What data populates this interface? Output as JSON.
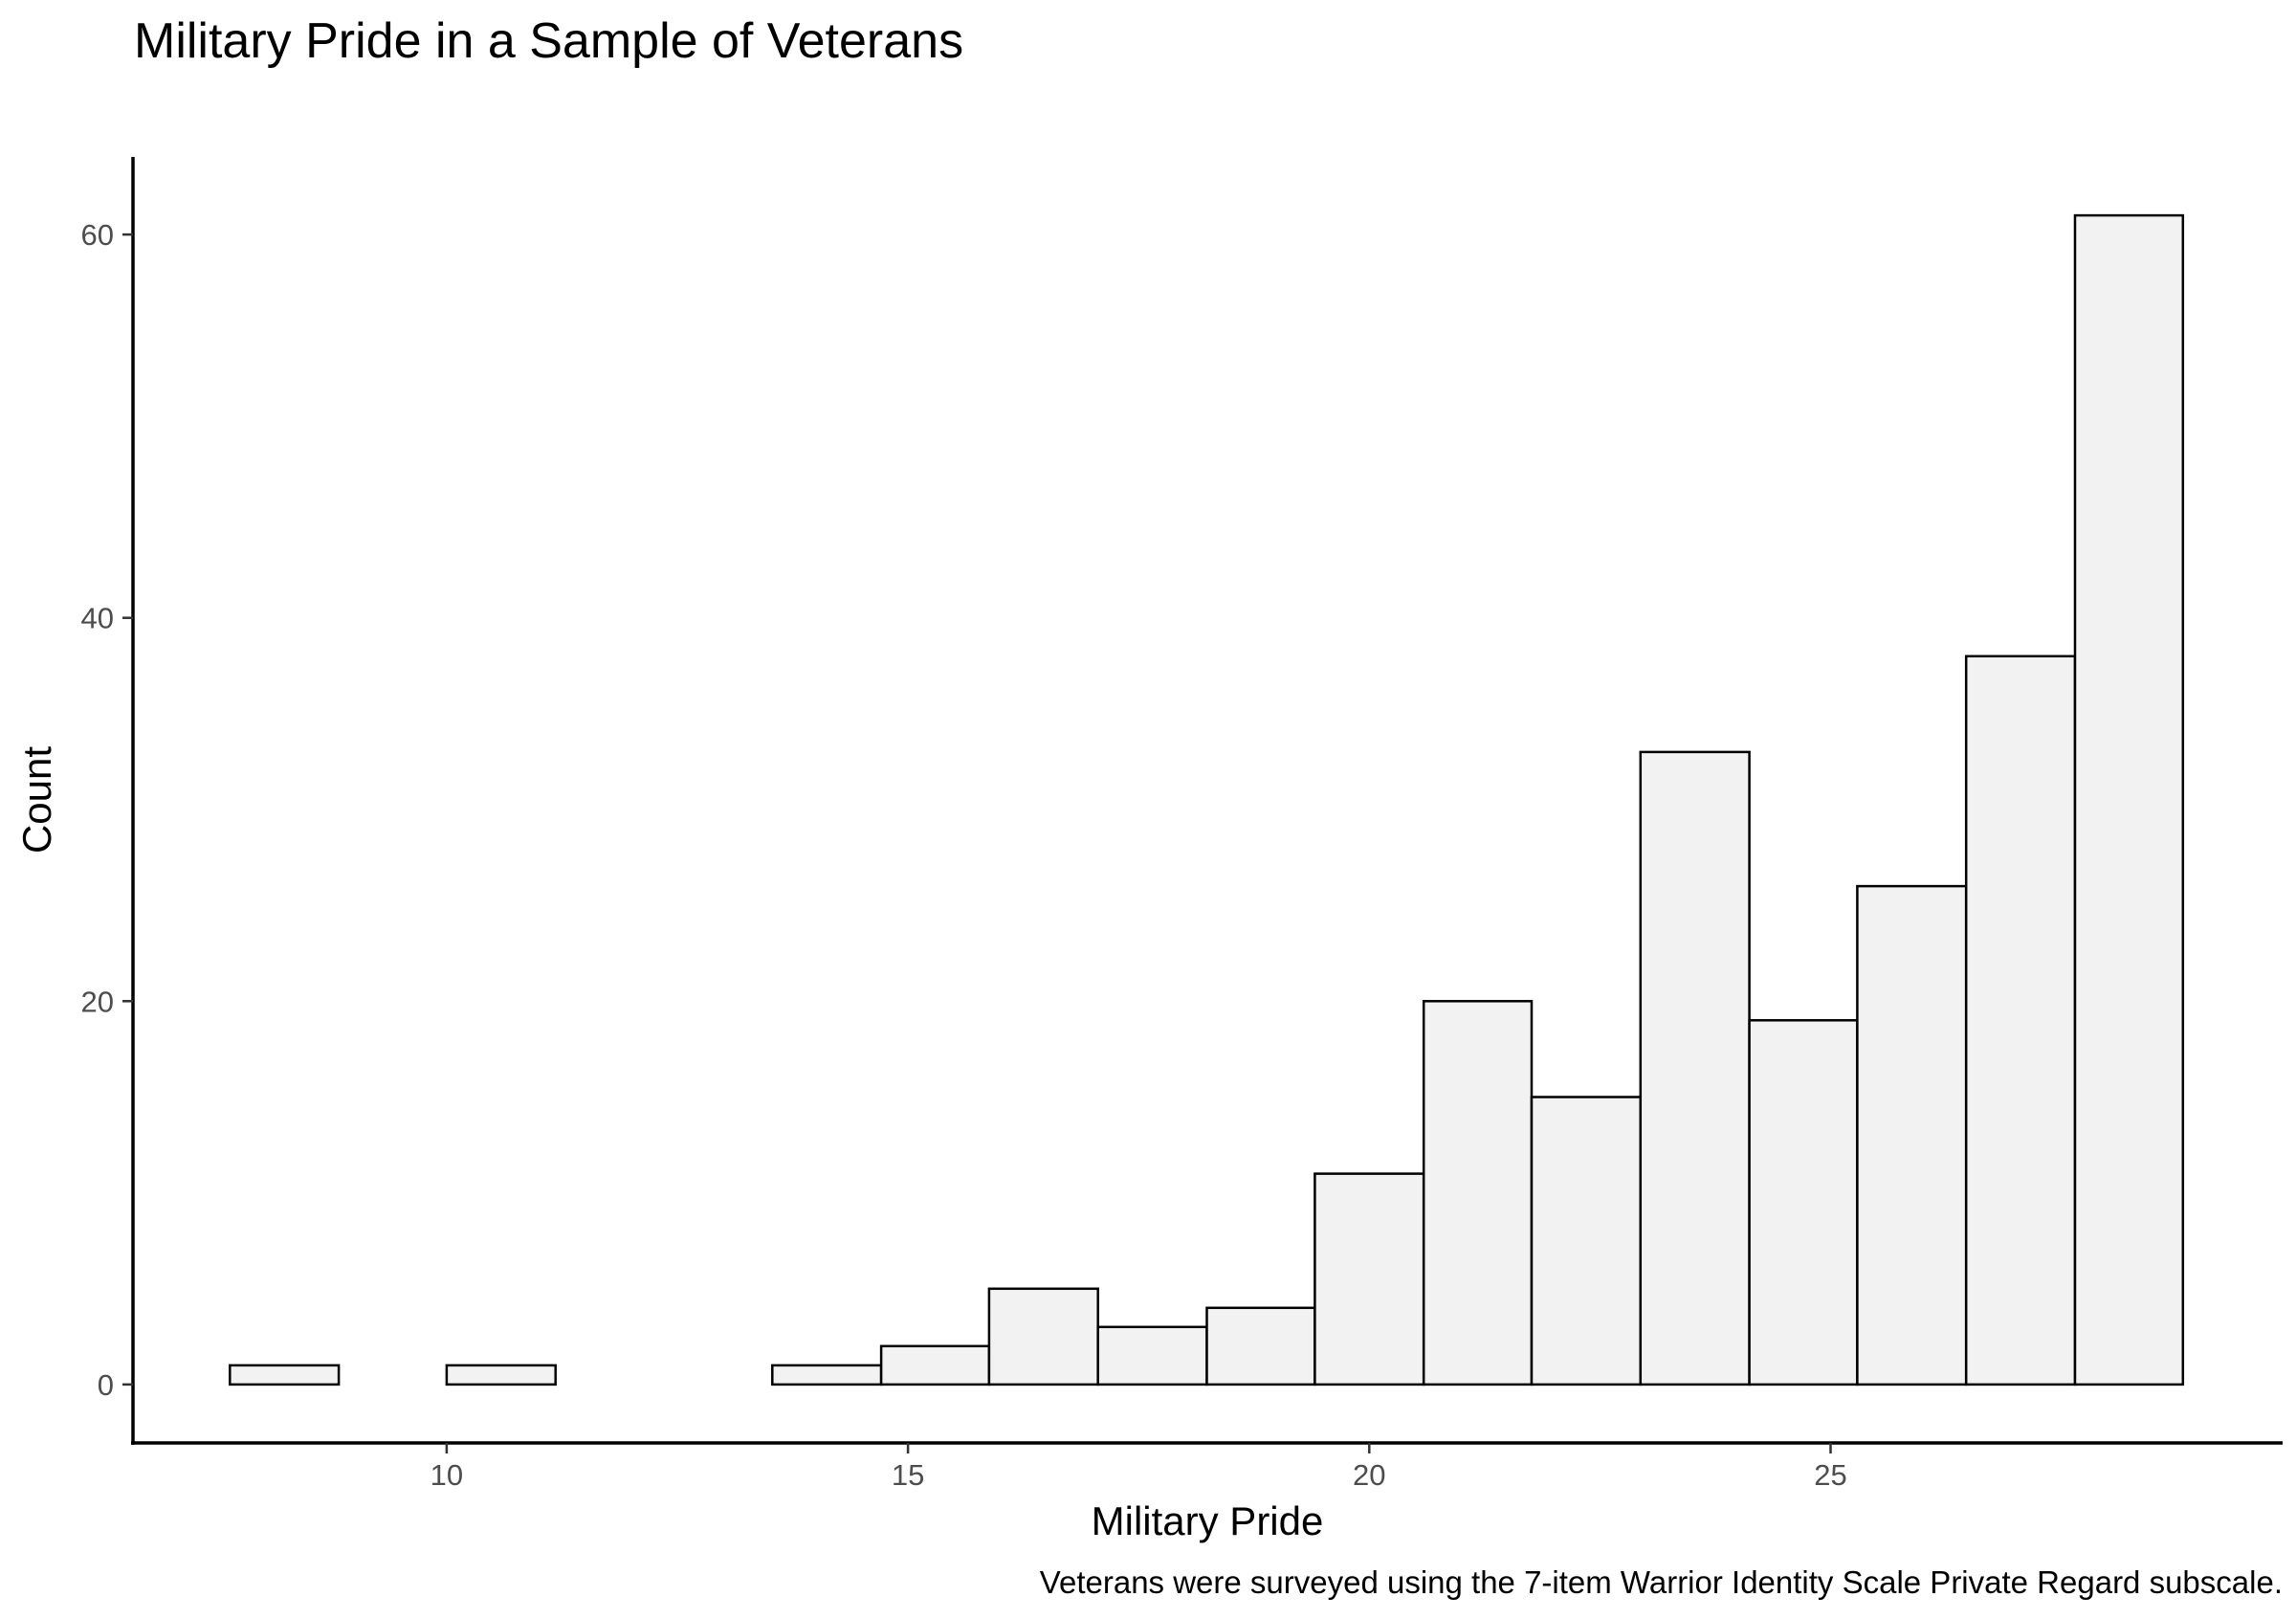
{
  "chart_data": {
    "type": "bar",
    "title": "Military Pride in a Sample of Veterans",
    "xlabel": "Military Pride",
    "ylabel": "Count",
    "caption": "Veterans were surveyed using the 7-item Warrior Identity Scale Private Regard subscale.",
    "bins": [
      {
        "x0": 7.65,
        "x1": 8.83,
        "count": 1
      },
      {
        "x0": 8.83,
        "x1": 10.0,
        "count": 0
      },
      {
        "x0": 10.0,
        "x1": 11.18,
        "count": 1
      },
      {
        "x0": 11.18,
        "x1": 12.35,
        "count": 0
      },
      {
        "x0": 12.35,
        "x1": 13.53,
        "count": 0
      },
      {
        "x0": 13.53,
        "x1": 14.71,
        "count": 1
      },
      {
        "x0": 14.71,
        "x1": 15.88,
        "count": 2
      },
      {
        "x0": 15.88,
        "x1": 17.06,
        "count": 5
      },
      {
        "x0": 17.06,
        "x1": 18.24,
        "count": 3
      },
      {
        "x0": 18.24,
        "x1": 19.41,
        "count": 4
      },
      {
        "x0": 19.41,
        "x1": 20.59,
        "count": 11
      },
      {
        "x0": 20.59,
        "x1": 21.76,
        "count": 20
      },
      {
        "x0": 21.76,
        "x1": 22.94,
        "count": 15
      },
      {
        "x0": 22.94,
        "x1": 24.12,
        "count": 33
      },
      {
        "x0": 24.12,
        "x1": 25.29,
        "count": 19
      },
      {
        "x0": 25.29,
        "x1": 26.47,
        "count": 26
      },
      {
        "x0": 26.47,
        "x1": 27.65,
        "count": 38
      },
      {
        "x0": 27.65,
        "x1": 28.82,
        "count": 61
      }
    ],
    "x_ticks": [
      10,
      15,
      20,
      25
    ],
    "x_tick_labels": [
      "10",
      "15",
      "20",
      "25"
    ],
    "y_ticks": [
      0,
      20,
      40,
      60
    ],
    "y_tick_labels": [
      "0",
      "20",
      "40",
      "60"
    ],
    "xlim": [
      6.6,
      29.9
    ],
    "ylim": [
      -3.05,
      64.05
    ],
    "grid": false,
    "legend": "none",
    "colors": {
      "bar_fill": "#f2f2f2",
      "bar_stroke": "#000000",
      "axis": "#000000",
      "tick_label": "#4d4d4d"
    }
  }
}
